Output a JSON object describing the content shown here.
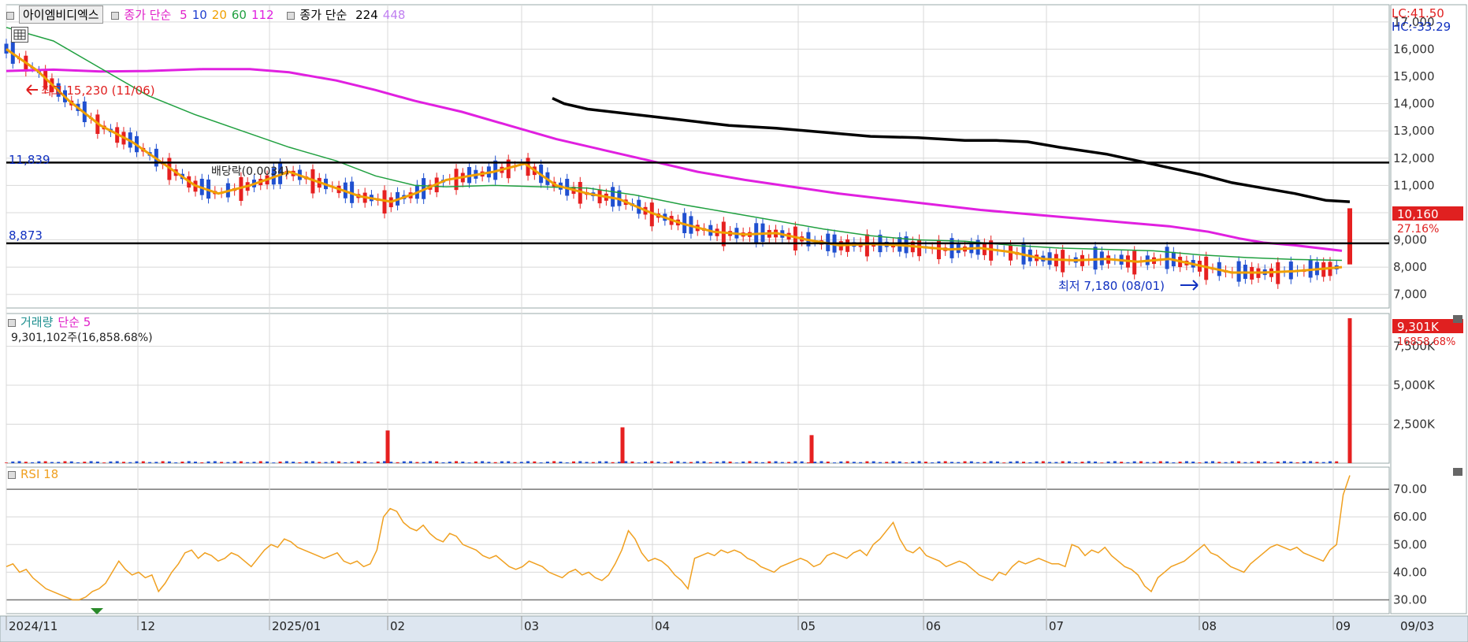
{
  "header": {
    "stock_name": "아이엠비디엑스",
    "ma_label": "종가 단순",
    "ma_periods": [
      "5",
      "10",
      "20",
      "60",
      "112"
    ],
    "ma_colors": [
      "#e020c8",
      "#2040d0",
      "#f0a000",
      "#20a040",
      "#e020e0"
    ],
    "ma2_label": "종가 단순",
    "ma2_periods": [
      "224",
      "448"
    ],
    "ma2_colors": [
      "#000000",
      "#c080f0"
    ]
  },
  "corner": {
    "lc": "LC:41.50",
    "hc": "HC:-33.29",
    "price_badge": "10,160",
    "price_pct": "27.16%",
    "vol_badge": "9,301K",
    "vol_pct": "16858.68%"
  },
  "annotations": {
    "high_note": "최고 15,230 (11/06)",
    "low_note": "최저 7,180 (08/01)",
    "level_high": "11,839",
    "level_low": "8,873",
    "split_note": "배당락(0.0034)"
  },
  "volume_header": {
    "title": "거래량",
    "ma_label": "단순 5",
    "summary": "9,301,102주(16,858.68%)"
  },
  "rsi_header": {
    "title": "RSI 18"
  },
  "colors": {
    "up": "#e62020",
    "down": "#2050d0",
    "ma5": "#e020c8",
    "ma10": "#2040d0",
    "ma20": "#f0a000",
    "ma60": "#20a040",
    "ma112": "#e020e0",
    "ma224": "#000000",
    "rsi": "#f0a020",
    "grid": "#d8d8d8",
    "axis_bg": "#dde6f0"
  },
  "chart_data": [
    {
      "type": "candlestick",
      "title": "아이엠비디엑스",
      "y_ticks": [
        "7,000",
        "8,000",
        "9,000",
        "10,000",
        "11,000",
        "12,000",
        "13,000",
        "14,000",
        "15,000",
        "16,000",
        "17,000"
      ],
      "ylim": [
        6500,
        17400
      ],
      "x_tick_labels": [
        "2024/11",
        "12",
        "2025/01",
        "02",
        "03",
        "04",
        "05",
        "06",
        "07",
        "08",
        "09",
        "09/03"
      ],
      "horizontal_levels": [
        11839,
        8873
      ],
      "ma_series": [
        {
          "name": "112",
          "points": [
            [
              0,
              15200
            ],
            [
              60,
              15250
            ],
            [
              120,
              15180
            ],
            [
              180,
              15200
            ],
            [
              250,
              15270
            ],
            [
              310,
              15270
            ],
            [
              360,
              15150
            ],
            [
              420,
              14850
            ],
            [
              470,
              14500
            ],
            [
              520,
              14100
            ],
            [
              580,
              13700
            ],
            [
              640,
              13200
            ],
            [
              700,
              12700
            ],
            [
              760,
              12300
            ],
            [
              820,
              11900
            ],
            [
              880,
              11500
            ],
            [
              940,
              11200
            ],
            [
              1000,
              10950
            ],
            [
              1060,
              10700
            ],
            [
              1120,
              10500
            ],
            [
              1180,
              10300
            ],
            [
              1240,
              10100
            ],
            [
              1300,
              9950
            ],
            [
              1360,
              9800
            ],
            [
              1420,
              9650
            ],
            [
              1480,
              9500
            ],
            [
              1530,
              9300
            ],
            [
              1570,
              9050
            ],
            [
              1600,
              8900
            ],
            [
              1640,
              8800
            ],
            [
              1700,
              8600
            ]
          ]
        },
        {
          "name": "224",
          "points": [
            [
              695,
              14200
            ],
            [
              710,
              14000
            ],
            [
              740,
              13800
            ],
            [
              800,
              13600
            ],
            [
              860,
              13400
            ],
            [
              920,
              13200
            ],
            [
              980,
              13100
            ],
            [
              1040,
              12950
            ],
            [
              1100,
              12800
            ],
            [
              1160,
              12750
            ],
            [
              1220,
              12650
            ],
            [
              1260,
              12650
            ],
            [
              1300,
              12600
            ],
            [
              1340,
              12400
            ],
            [
              1400,
              12150
            ],
            [
              1440,
              11900
            ],
            [
              1480,
              11650
            ],
            [
              1520,
              11400
            ],
            [
              1560,
              11100
            ],
            [
              1600,
              10900
            ],
            [
              1640,
              10700
            ],
            [
              1680,
              10450
            ],
            [
              1710,
              10400
            ]
          ]
        },
        {
          "name": "60",
          "points": [
            [
              0,
              16800
            ],
            [
              60,
              16300
            ],
            [
              120,
              15300
            ],
            [
              180,
              14300
            ],
            [
              240,
              13600
            ],
            [
              300,
              13000
            ],
            [
              360,
              12400
            ],
            [
              420,
              11900
            ],
            [
              470,
              11350
            ],
            [
              520,
              11000
            ],
            [
              560,
              10950
            ],
            [
              620,
              11000
            ],
            [
              680,
              10950
            ],
            [
              740,
              10900
            ],
            [
              800,
              10650
            ],
            [
              860,
              10300
            ],
            [
              920,
              10000
            ],
            [
              980,
              9700
            ],
            [
              1040,
              9400
            ],
            [
              1100,
              9150
            ],
            [
              1160,
              9000
            ],
            [
              1220,
              8950
            ],
            [
              1280,
              8800
            ],
            [
              1340,
              8700
            ],
            [
              1400,
              8650
            ],
            [
              1460,
              8600
            ],
            [
              1520,
              8450
            ],
            [
              1580,
              8350
            ],
            [
              1640,
              8280
            ],
            [
              1700,
              8250
            ]
          ]
        },
        {
          "name": "20",
          "points": [
            [
              0,
              16000
            ],
            [
              40,
              15200
            ],
            [
              80,
              14100
            ],
            [
              120,
              13200
            ],
            [
              160,
              12600
            ],
            [
              200,
              11800
            ],
            [
              240,
              11000
            ],
            [
              270,
              10700
            ],
            [
              310,
              11000
            ],
            [
              360,
              11500
            ],
            [
              400,
              11100
            ],
            [
              450,
              10600
            ],
            [
              490,
              10400
            ],
            [
              520,
              10700
            ],
            [
              560,
              11200
            ],
            [
              620,
              11500
            ],
            [
              660,
              11800
            ],
            [
              700,
              11000
            ],
            [
              740,
              10700
            ],
            [
              780,
              10500
            ],
            [
              820,
              10000
            ],
            [
              860,
              9600
            ],
            [
              900,
              9300
            ],
            [
              940,
              9200
            ],
            [
              980,
              9250
            ],
            [
              1020,
              9000
            ],
            [
              1060,
              8800
            ],
            [
              1100,
              8850
            ],
            [
              1140,
              8800
            ],
            [
              1200,
              8650
            ],
            [
              1240,
              8700
            ],
            [
              1280,
              8550
            ],
            [
              1320,
              8300
            ],
            [
              1360,
              8250
            ],
            [
              1400,
              8300
            ],
            [
              1440,
              8200
            ],
            [
              1480,
              8300
            ],
            [
              1520,
              8050
            ],
            [
              1560,
              7800
            ],
            [
              1600,
              7800
            ],
            [
              1640,
              7850
            ],
            [
              1700,
              8000
            ]
          ]
        }
      ]
    },
    {
      "type": "bar",
      "title": "거래량",
      "y_ticks": [
        "2,500K",
        "5,000K",
        "7,500K"
      ],
      "ylim": [
        0,
        9600
      ],
      "values_k": [
        9301
      ],
      "spikes_k": [
        {
          "x_label": "02",
          "value_k": 2100
        },
        {
          "x_label": "03",
          "value_k": 2300
        },
        {
          "x_label": "05",
          "value_k": 1800
        }
      ]
    },
    {
      "type": "line",
      "title": "RSI 18",
      "y_ticks": [
        "30.00",
        "40.00",
        "50.00",
        "60.00",
        "70.00"
      ],
      "ylim": [
        25,
        78
      ],
      "reference_lines": [
        70,
        30
      ],
      "values": [
        42,
        43,
        40,
        41,
        38,
        36,
        34,
        33,
        32,
        31,
        30,
        30,
        31,
        33,
        34,
        36,
        40,
        44,
        41,
        39,
        40,
        38,
        39,
        33,
        36,
        40,
        43,
        47,
        48,
        45,
        47,
        46,
        44,
        45,
        47,
        46,
        44,
        42,
        45,
        48,
        50,
        49,
        52,
        51,
        49,
        48,
        47,
        46,
        45,
        46,
        47,
        44,
        43,
        44,
        42,
        43,
        48,
        60,
        63,
        62,
        58,
        56,
        55,
        57,
        54,
        52,
        51,
        54,
        53,
        50,
        49,
        48,
        46,
        45,
        46,
        44,
        42,
        41,
        42,
        44,
        43,
        42,
        40,
        39,
        38,
        40,
        41,
        39,
        40,
        38,
        37,
        39,
        43,
        48,
        55,
        52,
        47,
        44,
        45,
        44,
        42,
        39,
        37,
        34,
        45,
        46,
        47,
        46,
        48,
        47,
        48,
        47,
        45,
        44,
        42,
        41,
        40,
        42,
        43,
        44,
        45,
        44,
        42,
        43,
        46,
        47,
        46,
        45,
        47,
        48,
        46,
        50,
        52,
        55,
        58,
        52,
        48,
        47,
        49,
        46,
        45,
        44,
        42,
        43,
        44,
        43,
        41,
        39,
        38,
        37,
        40,
        39,
        42,
        44,
        43,
        44,
        45,
        44,
        43,
        43,
        42,
        50,
        49,
        46,
        48,
        47,
        49,
        46,
        44,
        42,
        41,
        39,
        35,
        33,
        38,
        40,
        42,
        43,
        44,
        46,
        48,
        50,
        47,
        46,
        44,
        42,
        41,
        40,
        43,
        45,
        47,
        49,
        50,
        49,
        48,
        49,
        47,
        46,
        45,
        44,
        48,
        50,
        68,
        75
      ]
    }
  ]
}
